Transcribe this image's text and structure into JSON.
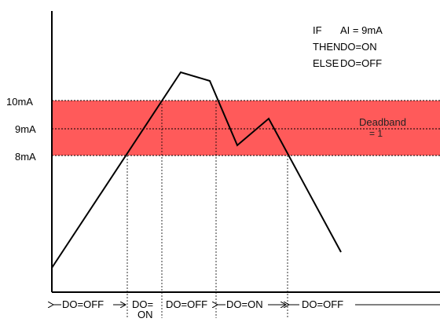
{
  "rule": {
    "line1_keyword": "IF",
    "line1_expr": "AI = 9mA",
    "line2_keyword": "THEN",
    "line2_expr": "DO=ON",
    "line3_keyword": "ELSE",
    "line3_expr": "DO=OFF"
  },
  "levels": {
    "upper": "10mA",
    "setpoint": "9mA",
    "lower": "8mA"
  },
  "deadband": {
    "label": "Deadband",
    "value": "= 1",
    "band_color": "#ff5a5a"
  },
  "bottom_segments": [
    {
      "label": "DO=OFF"
    },
    {
      "label": "DO=",
      "label2": "ON"
    },
    {
      "label": "DO=OFF"
    },
    {
      "label": "DO=ON"
    },
    {
      "label": "DO=OFF"
    }
  ]
}
